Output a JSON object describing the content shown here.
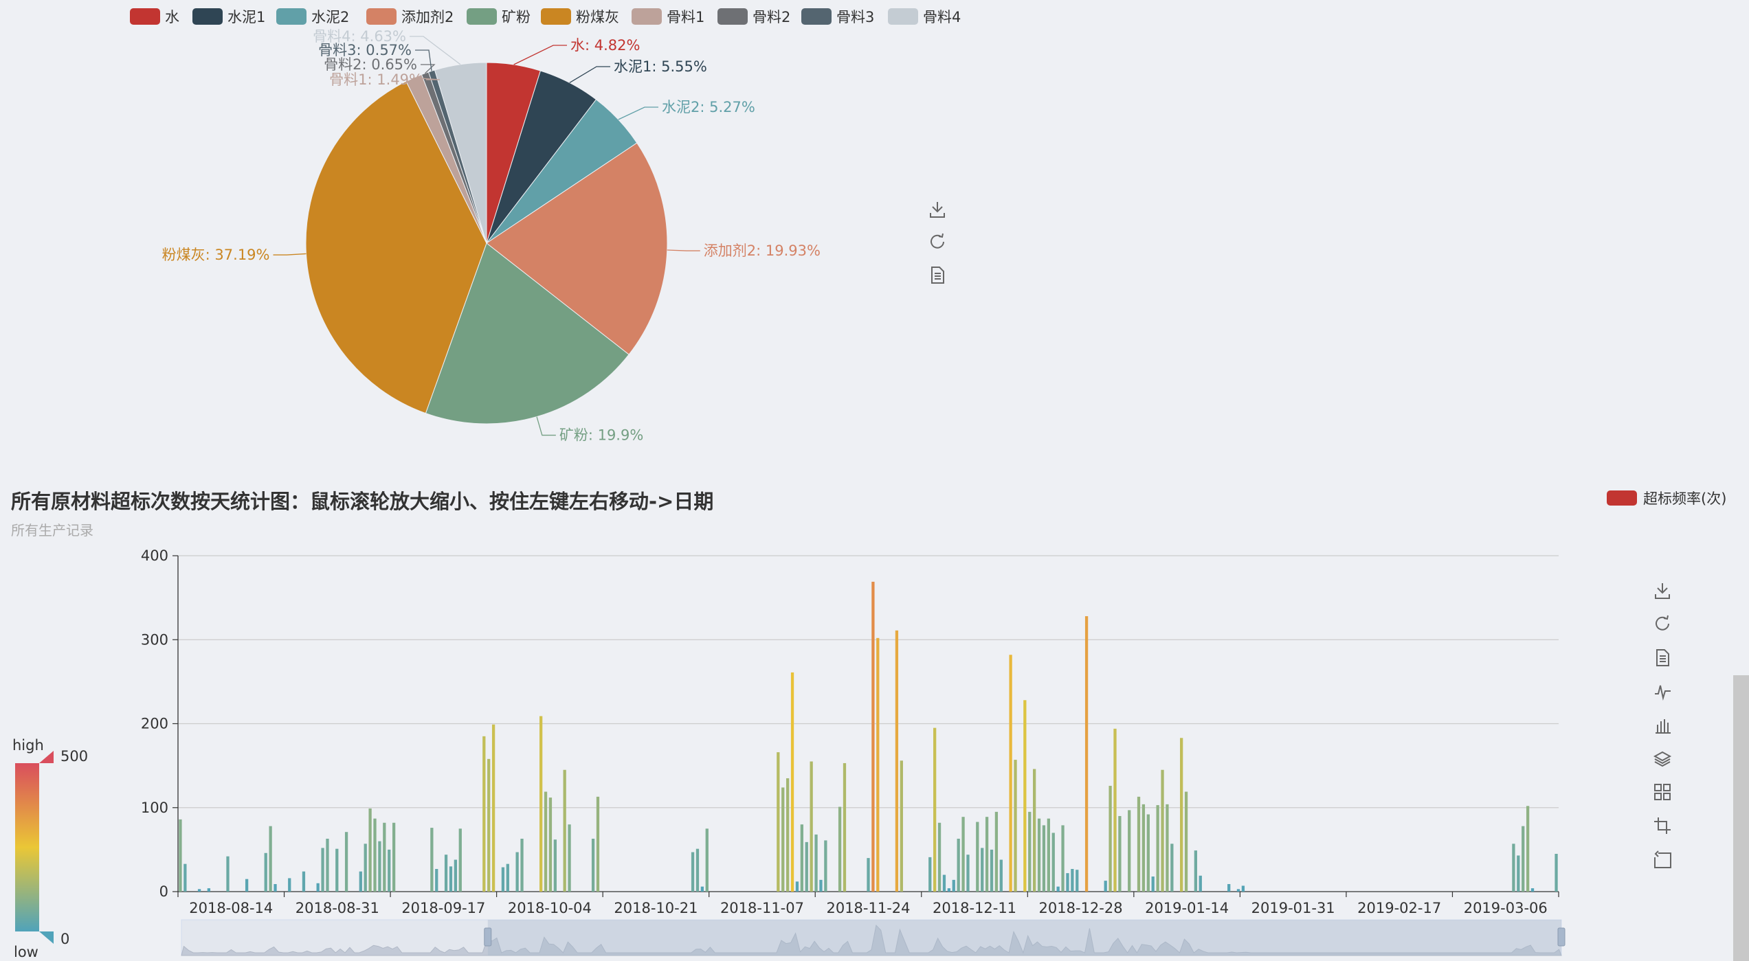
{
  "pie_chart": {
    "legend": [
      {
        "name": "水",
        "color": "#c23531"
      },
      {
        "name": "水泥1",
        "color": "#2f4554"
      },
      {
        "name": "水泥2",
        "color": "#61a0a8"
      },
      {
        "name": "添加剂2",
        "color": "#d48265"
      },
      {
        "name": "矿粉",
        "color": "#749f83"
      },
      {
        "name": "粉煤灰",
        "color": "#ca8622"
      },
      {
        "name": "骨料1",
        "color": "#bda29a"
      },
      {
        "name": "骨料2",
        "color": "#6e7074"
      },
      {
        "name": "骨料3",
        "color": "#546570"
      },
      {
        "name": "骨料4",
        "color": "#c4ccd3"
      }
    ],
    "toolbox": [
      "download-icon",
      "refresh-icon",
      "data-view-icon"
    ]
  },
  "bar_chart": {
    "legend_label": "超标频率(次)",
    "legend_color": "#c23531",
    "visual_map": {
      "high_text": "high",
      "low_text": "low",
      "max_label": "500",
      "min_label": "0",
      "colors": [
        "#d94e5d",
        "#eac736",
        "#50a3ba"
      ]
    },
    "toolbox": [
      "download-icon",
      "refresh-icon",
      "data-view-icon",
      "line-type-icon",
      "bar-type-icon",
      "stack-icon",
      "tiled-icon",
      "zoom-icon",
      "zoom-reset-icon"
    ]
  },
  "chart_data": [
    {
      "type": "pie",
      "slices": [
        {
          "name": "水",
          "value": 4.82,
          "label": "水: 4.82%"
        },
        {
          "name": "水泥1",
          "value": 5.55,
          "label": "水泥1: 5.55%"
        },
        {
          "name": "水泥2",
          "value": 5.27,
          "label": "水泥2: 5.27%"
        },
        {
          "name": "添加剂2",
          "value": 19.93,
          "label": "添加剂2: 19.93%"
        },
        {
          "name": "矿粉",
          "value": 19.9,
          "label": "矿粉: 19.9%"
        },
        {
          "name": "粉煤灰",
          "value": 37.19,
          "label": "粉煤灰: 37.19%"
        },
        {
          "name": "骨料1",
          "value": 1.49,
          "label": "骨料1: 1.49%"
        },
        {
          "name": "骨料2",
          "value": 0.65,
          "label": "骨料2: 0.65%"
        },
        {
          "name": "骨料3",
          "value": 0.57,
          "label": "骨料3: 0.57%"
        },
        {
          "name": "骨料4",
          "value": 4.63,
          "label": "骨料4: 4.63%"
        }
      ]
    },
    {
      "type": "bar",
      "title": "所有原材料超标次数按天统计图：鼠标滚轮放大缩小、按住左键左右移动->日期",
      "subtitle": "所有生产记录",
      "series_name": "超标频率(次)",
      "ylim": [
        0,
        400
      ],
      "y_ticks": [
        0,
        100,
        200,
        300,
        400
      ],
      "x_tick_labels": [
        "2018-08-14",
        "2018-08-31",
        "2018-09-17",
        "2018-10-04",
        "2018-10-21",
        "2018-11-07",
        "2018-11-24",
        "2018-12-11",
        "2018-12-28",
        "2019-01-14",
        "2019-01-31",
        "2019-02-17",
        "2019-03-06"
      ],
      "values": [
        86,
        33,
        0,
        0,
        3,
        0,
        4,
        0,
        0,
        0,
        42,
        0,
        0,
        0,
        15,
        0,
        0,
        0,
        46,
        78,
        9,
        0,
        0,
        16,
        0,
        0,
        24,
        0,
        0,
        10,
        52,
        63,
        0,
        51,
        0,
        71,
        0,
        0,
        24,
        57,
        99,
        87,
        60,
        82,
        50,
        82,
        0,
        0,
        0,
        0,
        0,
        0,
        0,
        76,
        27,
        0,
        44,
        30,
        38,
        75,
        0,
        0,
        0,
        0,
        185,
        158,
        199,
        0,
        29,
        33,
        0,
        47,
        63,
        0,
        0,
        0,
        209,
        119,
        112,
        62,
        0,
        145,
        80,
        0,
        0,
        0,
        0,
        63,
        113,
        0,
        0,
        0,
        0,
        0,
        0,
        0,
        0,
        0,
        0,
        0,
        0,
        0,
        0,
        0,
        0,
        0,
        0,
        0,
        47,
        51,
        6,
        75,
        0,
        0,
        0,
        0,
        0,
        0,
        0,
        0,
        0,
        0,
        0,
        0,
        0,
        0,
        166,
        124,
        135,
        261,
        12,
        80,
        59,
        155,
        68,
        14,
        61,
        0,
        0,
        101,
        153,
        0,
        0,
        0,
        0,
        40,
        369,
        302,
        0,
        0,
        0,
        311,
        156,
        0,
        0,
        0,
        0,
        0,
        41,
        195,
        82,
        20,
        4,
        14,
        63,
        89,
        44,
        0,
        83,
        52,
        89,
        50,
        95,
        38,
        0,
        282,
        157,
        0,
        228,
        95,
        146,
        87,
        79,
        87,
        70,
        6,
        79,
        22,
        27,
        26,
        0,
        328,
        0,
        0,
        0,
        13,
        126,
        194,
        90,
        0,
        97,
        0,
        113,
        104,
        92,
        18,
        103,
        145,
        104,
        57,
        0,
        183,
        119,
        0,
        49,
        19,
        0,
        0,
        0,
        0,
        0,
        9,
        0,
        3,
        7,
        0,
        0,
        0,
        0,
        0,
        0,
        0,
        0,
        0,
        0,
        0,
        0,
        0,
        0,
        0,
        0,
        0,
        0,
        0,
        0,
        0,
        0,
        0,
        0,
        0,
        0,
        0,
        0,
        0,
        0,
        0,
        0,
        0,
        0,
        0,
        0,
        0,
        0,
        0,
        0,
        0,
        0,
        0,
        0,
        0,
        0,
        0,
        0,
        0,
        0,
        0,
        0,
        0,
        0,
        0,
        0,
        57,
        43,
        78,
        102,
        4,
        0,
        0,
        0,
        0,
        45
      ],
      "visual_map": {
        "min": 0,
        "max": 500
      },
      "data_zoom": {
        "start": 0.222,
        "end": 1.0
      }
    }
  ]
}
